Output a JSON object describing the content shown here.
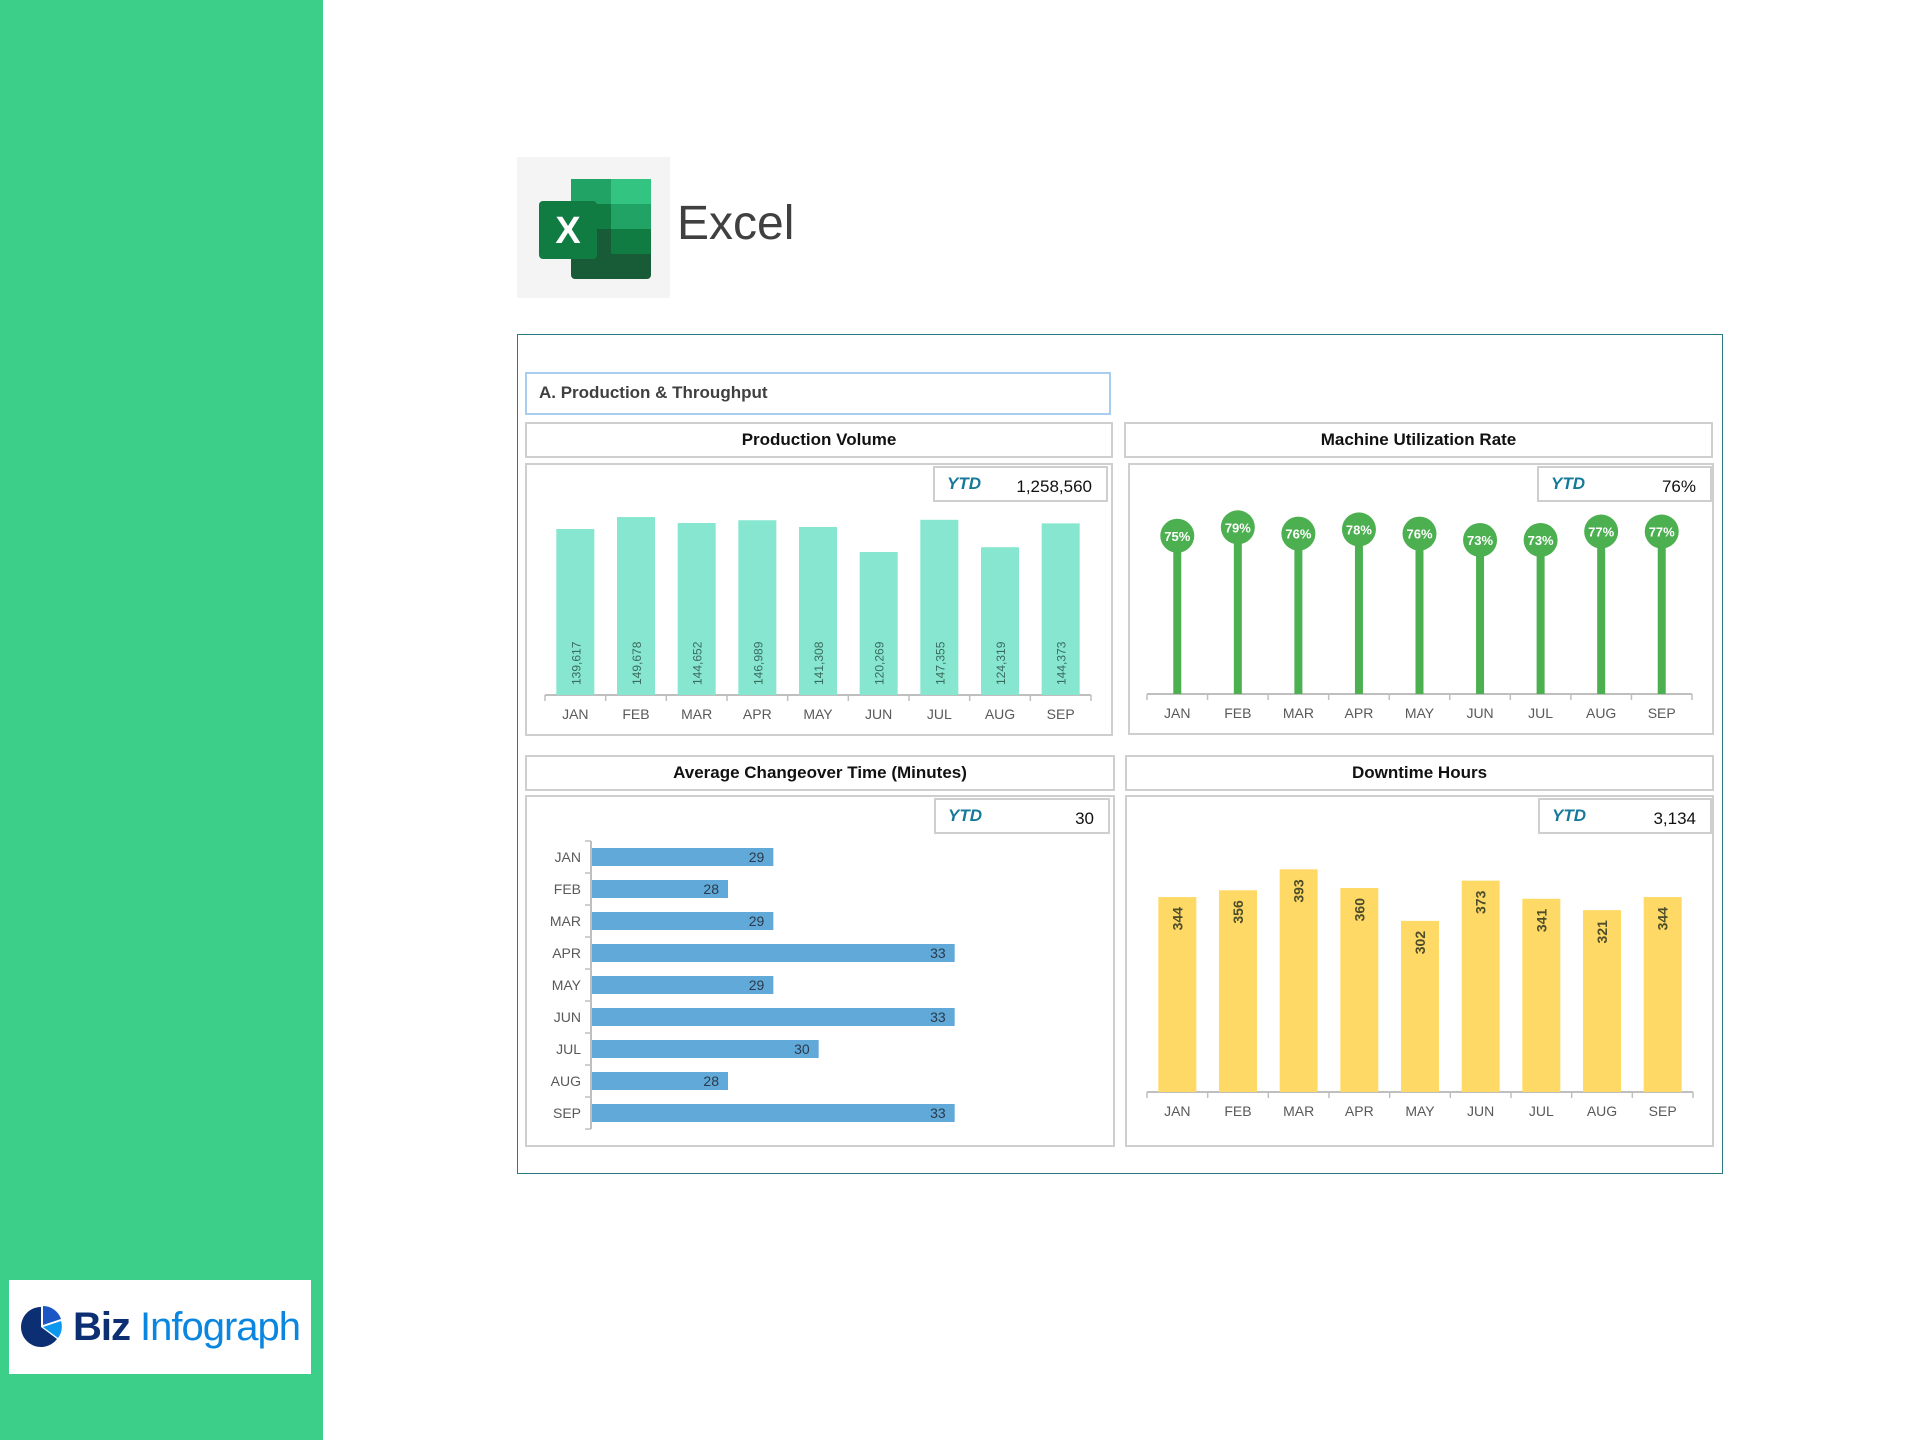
{
  "brand": {
    "biz_word": "Biz",
    "infograph_word": "Infograph",
    "sidebar_color": "#3ccf8a"
  },
  "app": {
    "name": "Excel"
  },
  "section": {
    "title": "A. Production & Throughput"
  },
  "ytd_label": "YTD",
  "charts": {
    "production_volume": {
      "title": "Production Volume",
      "ytd": "1,258,560"
    },
    "machine_utilization": {
      "title": "Machine Utilization Rate",
      "ytd": "76%"
    },
    "changeover_time": {
      "title": "Average Changeover Time (Minutes)",
      "ytd": "30"
    },
    "downtime_hours": {
      "title": "Downtime Hours",
      "ytd": "3,134"
    }
  },
  "chart_data": [
    {
      "type": "bar",
      "title": "Production Volume",
      "categories": [
        "JAN",
        "FEB",
        "MAR",
        "APR",
        "MAY",
        "JUN",
        "JUL",
        "AUG",
        "SEP"
      ],
      "values": [
        139617,
        149678,
        144652,
        146989,
        141308,
        120269,
        147355,
        124319,
        144373
      ],
      "labels": [
        "139,617",
        "149,678",
        "144,652",
        "146,989",
        "141,308",
        "120,269",
        "147,355",
        "124,319",
        "144,373"
      ],
      "ylim": [
        0,
        180000
      ],
      "color": "#86e6cf",
      "grid": false
    },
    {
      "type": "lollipop",
      "title": "Machine Utilization Rate",
      "categories": [
        "JAN",
        "FEB",
        "MAR",
        "APR",
        "MAY",
        "JUN",
        "JUL",
        "AUG",
        "SEP"
      ],
      "values": [
        75,
        79,
        76,
        78,
        76,
        73,
        73,
        77,
        77
      ],
      "labels": [
        "75%",
        "79%",
        "76%",
        "78%",
        "76%",
        "73%",
        "73%",
        "77%",
        "77%"
      ],
      "ylim": [
        0,
        100
      ],
      "color": "#4caf50",
      "grid": false
    },
    {
      "type": "bar",
      "orientation": "horizontal",
      "title": "Average Changeover Time (Minutes)",
      "categories": [
        "JAN",
        "FEB",
        "MAR",
        "APR",
        "MAY",
        "JUN",
        "JUL",
        "AUG",
        "SEP"
      ],
      "values": [
        29,
        28,
        29,
        33,
        29,
        33,
        30,
        28,
        33
      ],
      "labels": [
        "29",
        "28",
        "29",
        "33",
        "29",
        "33",
        "30",
        "28",
        "33"
      ],
      "xlim": [
        25,
        34
      ],
      "color": "#61a9d8",
      "grid": false
    },
    {
      "type": "bar",
      "title": "Downtime Hours",
      "categories": [
        "JAN",
        "FEB",
        "MAR",
        "APR",
        "MAY",
        "JUN",
        "JUL",
        "AUG",
        "SEP"
      ],
      "values": [
        344,
        356,
        393,
        360,
        302,
        373,
        341,
        321,
        344
      ],
      "labels": [
        "344",
        "356",
        "393",
        "360",
        "302",
        "373",
        "341",
        "321",
        "344"
      ],
      "ylim": [
        0,
        450
      ],
      "color": "#ffd966",
      "grid": false
    }
  ]
}
